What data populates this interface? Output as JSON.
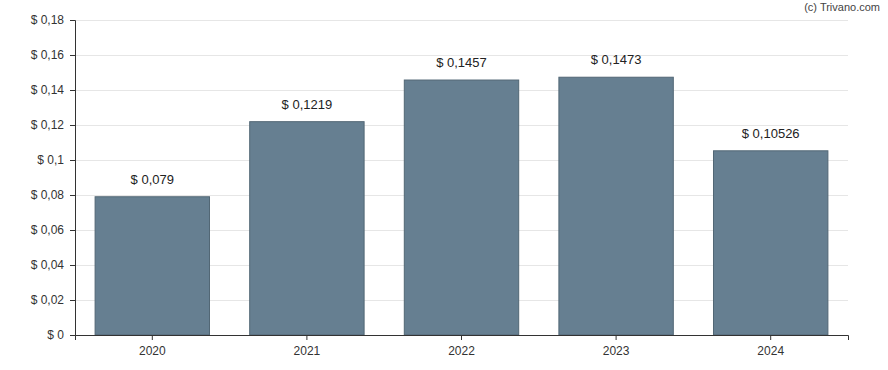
{
  "chart_data": {
    "type": "bar",
    "annotations": [
      "(c) Trivano.com"
    ],
    "categories": [
      "2020",
      "2021",
      "2022",
      "2023",
      "2024"
    ],
    "values": [
      0.079,
      0.1219,
      0.1457,
      0.1473,
      0.10526
    ],
    "value_labels": [
      "$ 0,079",
      "$ 0,1219",
      "$ 0,1457",
      "$ 0,1473",
      "$ 0,10526"
    ],
    "data_labels": true,
    "color": "#667f91",
    "ylim": [
      0,
      0.18
    ],
    "yticks": [
      {
        "value": 0,
        "label": "$ 0"
      },
      {
        "value": 0.02,
        "label": "$ 0,02"
      },
      {
        "value": 0.04,
        "label": "$ 0,04"
      },
      {
        "value": 0.06,
        "label": "$ 0,06"
      },
      {
        "value": 0.08,
        "label": "$ 0,08"
      },
      {
        "value": 0.1,
        "label": "$ 0,1"
      },
      {
        "value": 0.12,
        "label": "$ 0,12"
      },
      {
        "value": 0.14,
        "label": "$ 0,14"
      },
      {
        "value": 0.16,
        "label": "$ 0,16"
      },
      {
        "value": 0.18,
        "label": "$ 0,18"
      }
    ],
    "grid": true
  }
}
